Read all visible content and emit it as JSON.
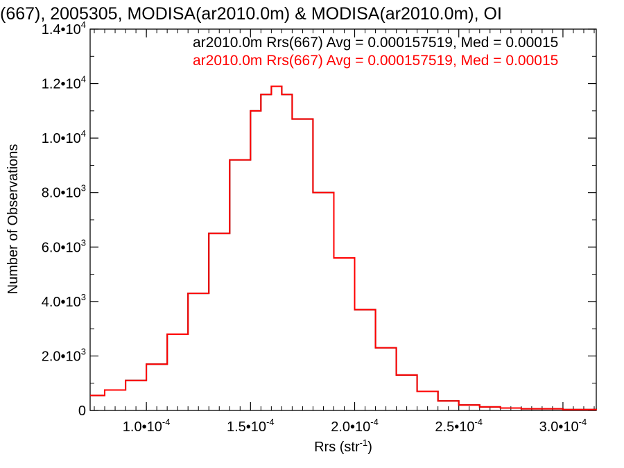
{
  "chart_data": {
    "type": "line",
    "title": "(667), 2005305, MODISA(ar2010.0m) & MODISA(ar2010.0m), OI",
    "xlabel": "Rrs (str",
    "xlabel_sup": "-1",
    "xlabel_end": ")",
    "ylabel": "Number of Observations",
    "xlim": [
      7.3e-05,
      0.000316
    ],
    "ylim": [
      0,
      14000
    ],
    "grid": false,
    "x_ticks": [
      {
        "value": 0.0001,
        "mant": "1.0•10",
        "exp": "-4"
      },
      {
        "value": 0.00015,
        "mant": "1.5•10",
        "exp": "-4"
      },
      {
        "value": 0.0002,
        "mant": "2.0•10",
        "exp": "-4"
      },
      {
        "value": 0.00025,
        "mant": "2.5•10",
        "exp": "-4"
      },
      {
        "value": 0.0003,
        "mant": "3.0•10",
        "exp": "-4"
      }
    ],
    "y_ticks": [
      {
        "value": 0,
        "mant": "0",
        "exp": ""
      },
      {
        "value": 2000,
        "mant": "2.0•10",
        "exp": "3"
      },
      {
        "value": 4000,
        "mant": "4.0•10",
        "exp": "3"
      },
      {
        "value": 6000,
        "mant": "6.0•10",
        "exp": "3"
      },
      {
        "value": 8000,
        "mant": "8.0•10",
        "exp": "3"
      },
      {
        "value": 10000,
        "mant": "1.0•10",
        "exp": "4"
      },
      {
        "value": 12000,
        "mant": "1.2•10",
        "exp": "4"
      },
      {
        "value": 14000,
        "mant": "1.4•10",
        "exp": "4"
      }
    ],
    "legend_position": "top-right",
    "series": [
      {
        "name": "ar2010.0m Rrs(667) Avg = 0.000157519, Med = 0.00015",
        "color": "#000000",
        "x": [
          7.3e-05,
          8e-05,
          9e-05,
          0.0001,
          0.00011,
          0.00012,
          0.00013,
          0.00014,
          0.00015,
          0.000155,
          0.00016,
          0.000165,
          0.00017,
          0.00018,
          0.00019,
          0.0002,
          0.00021,
          0.00022,
          0.00023,
          0.00024,
          0.00025,
          0.00026,
          0.00027,
          0.00028,
          0.0003,
          0.000316
        ],
        "y": [
          550,
          750,
          1100,
          1700,
          2800,
          4300,
          6500,
          9200,
          11000,
          11600,
          11900,
          11600,
          10700,
          8000,
          5600,
          3700,
          2300,
          1300,
          700,
          350,
          200,
          130,
          90,
          60,
          30,
          15
        ]
      },
      {
        "name": "ar2010.0m Rrs(667) Avg = 0.000157519, Med = 0.00015",
        "color": "#ff0000",
        "x": [
          7.3e-05,
          8e-05,
          9e-05,
          0.0001,
          0.00011,
          0.00012,
          0.00013,
          0.00014,
          0.00015,
          0.000155,
          0.00016,
          0.000165,
          0.00017,
          0.00018,
          0.00019,
          0.0002,
          0.00021,
          0.00022,
          0.00023,
          0.00024,
          0.00025,
          0.00026,
          0.00027,
          0.00028,
          0.0003,
          0.000316
        ],
        "y": [
          550,
          750,
          1100,
          1700,
          2800,
          4300,
          6500,
          9200,
          11000,
          11600,
          11900,
          11600,
          10700,
          8000,
          5600,
          3700,
          2300,
          1300,
          700,
          350,
          200,
          130,
          90,
          60,
          30,
          15
        ]
      }
    ]
  }
}
